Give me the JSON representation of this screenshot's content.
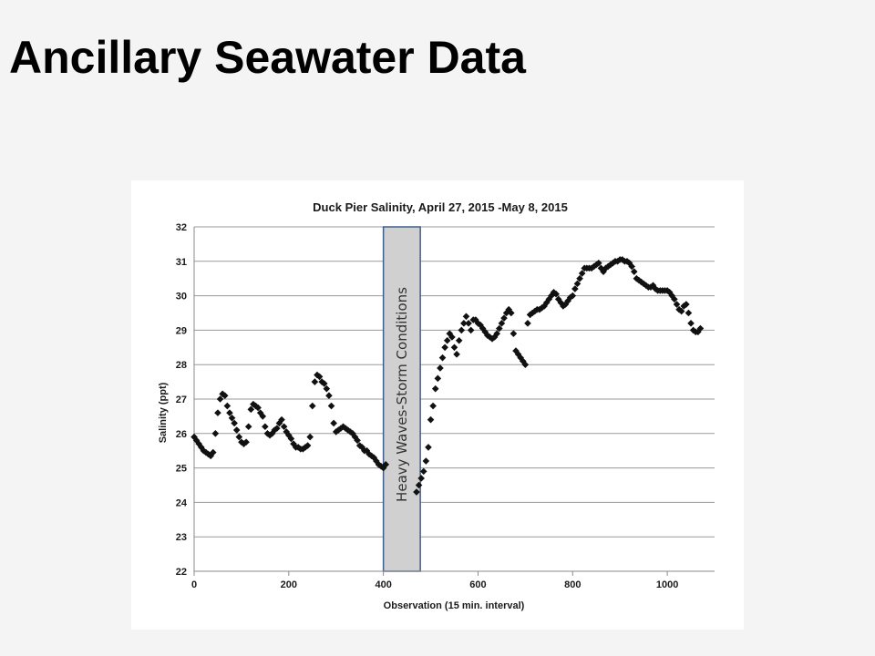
{
  "slide": {
    "title": "Ancillary Seawater Data"
  },
  "chart_data": {
    "type": "scatter",
    "title": "Duck Pier Salinity, April 27, 2015 -May 8, 2015",
    "xlabel": "Observation (15 min. interval)",
    "ylabel": "Salinity (ppt)",
    "xlim": [
      0,
      1100
    ],
    "ylim": [
      22,
      32
    ],
    "xticks": [
      0,
      200,
      400,
      600,
      800,
      1000
    ],
    "yticks": [
      22,
      23,
      24,
      25,
      26,
      27,
      28,
      29,
      30,
      31,
      32
    ],
    "grid": "horizontal",
    "legend": "none",
    "marker": "diamond",
    "marker_color": "#111111",
    "annotation": {
      "text": "Heavy Waves-Storm Conditions",
      "x_range": [
        400,
        478
      ],
      "fill": "#d0d0d0",
      "stroke": "#3f5f8a"
    },
    "series": [
      {
        "x": [
          0,
          5,
          10,
          15,
          20,
          25,
          30,
          35,
          40,
          45,
          50,
          55,
          60,
          65,
          70,
          75,
          80,
          85,
          90,
          95,
          100,
          105,
          110,
          115,
          120,
          125,
          130,
          135,
          140,
          145,
          150,
          155,
          160,
          165,
          170,
          175,
          180,
          185,
          190,
          195,
          200,
          205,
          210,
          215,
          220,
          225,
          230,
          235,
          240,
          245,
          250,
          255,
          260,
          265,
          270,
          275,
          280,
          285,
          290,
          295,
          300,
          305,
          310,
          315,
          320,
          325,
          330,
          335,
          340,
          345,
          350,
          355,
          360,
          365,
          370,
          375,
          380,
          385,
          390,
          395,
          400,
          405,
          470,
          475,
          480,
          485,
          490,
          495,
          500,
          505,
          510,
          515,
          520,
          525,
          530,
          535,
          540,
          545,
          550,
          555,
          560,
          565,
          570,
          575,
          580,
          585,
          590,
          595,
          600,
          605,
          610,
          615,
          620,
          625,
          630,
          635,
          640,
          645,
          650,
          655,
          660,
          665,
          670,
          675,
          680,
          685,
          690,
          695,
          700,
          705,
          710,
          715,
          720,
          725,
          730,
          735,
          740,
          745,
          750,
          755,
          760,
          765,
          770,
          775,
          780,
          785,
          790,
          795,
          800,
          805,
          810,
          815,
          820,
          825,
          830,
          835,
          840,
          845,
          850,
          855,
          860,
          865,
          870,
          875,
          880,
          885,
          890,
          895,
          900,
          905,
          910,
          915,
          920,
          925,
          930,
          935,
          940,
          945,
          950,
          955,
          960,
          965,
          970,
          975,
          980,
          985,
          990,
          995,
          1000,
          1005,
          1010,
          1015,
          1020,
          1025,
          1030,
          1035,
          1040,
          1045,
          1050,
          1055,
          1060,
          1065,
          1070
        ],
        "y": [
          25.9,
          25.8,
          25.7,
          25.6,
          25.5,
          25.45,
          25.4,
          25.35,
          25.45,
          26.0,
          26.6,
          27.0,
          27.15,
          27.1,
          26.8,
          26.6,
          26.45,
          26.3,
          26.1,
          25.9,
          25.75,
          25.7,
          25.75,
          26.2,
          26.7,
          26.85,
          26.8,
          26.75,
          26.6,
          26.5,
          26.2,
          26.0,
          25.95,
          26.0,
          26.1,
          26.15,
          26.3,
          26.4,
          26.2,
          26.05,
          25.95,
          25.85,
          25.7,
          25.6,
          25.6,
          25.55,
          25.55,
          25.6,
          25.65,
          25.9,
          26.8,
          27.5,
          27.7,
          27.65,
          27.5,
          27.45,
          27.3,
          27.1,
          26.8,
          26.3,
          26.05,
          26.1,
          26.15,
          26.2,
          26.15,
          26.1,
          26.05,
          26.0,
          25.9,
          25.8,
          25.65,
          25.6,
          25.5,
          25.5,
          25.4,
          25.35,
          25.3,
          25.2,
          25.1,
          25.05,
          25.0,
          25.1,
          24.3,
          24.5,
          24.7,
          24.9,
          25.2,
          25.6,
          26.4,
          26.8,
          27.3,
          27.6,
          27.9,
          28.2,
          28.5,
          28.7,
          28.9,
          28.8,
          28.5,
          28.3,
          28.7,
          29.0,
          29.2,
          29.4,
          29.2,
          29.0,
          29.3,
          29.3,
          29.2,
          29.15,
          29.05,
          28.95,
          28.85,
          28.8,
          28.75,
          28.8,
          28.9,
          29.05,
          29.2,
          29.35,
          29.5,
          29.6,
          29.5,
          28.9,
          28.4,
          28.3,
          28.2,
          28.1,
          28.0,
          29.2,
          29.45,
          29.5,
          29.55,
          29.6,
          29.6,
          29.65,
          29.7,
          29.8,
          29.9,
          30.0,
          30.1,
          30.05,
          29.9,
          29.8,
          29.7,
          29.75,
          29.85,
          29.95,
          30.0,
          30.2,
          30.35,
          30.5,
          30.65,
          30.8,
          30.8,
          30.8,
          30.8,
          30.85,
          30.9,
          30.95,
          30.8,
          30.7,
          30.8,
          30.85,
          30.9,
          30.95,
          31.0,
          31.0,
          31.05,
          31.05,
          31.0,
          31.0,
          30.95,
          30.85,
          30.7,
          30.5,
          30.45,
          30.4,
          30.35,
          30.3,
          30.25,
          30.25,
          30.3,
          30.2,
          30.15,
          30.15,
          30.15,
          30.15,
          30.15,
          30.1,
          30.0,
          29.9,
          29.75,
          29.6,
          29.55,
          29.7,
          29.75,
          29.5,
          29.2,
          29.0,
          28.95,
          28.95,
          29.05
        ]
      }
    ]
  }
}
